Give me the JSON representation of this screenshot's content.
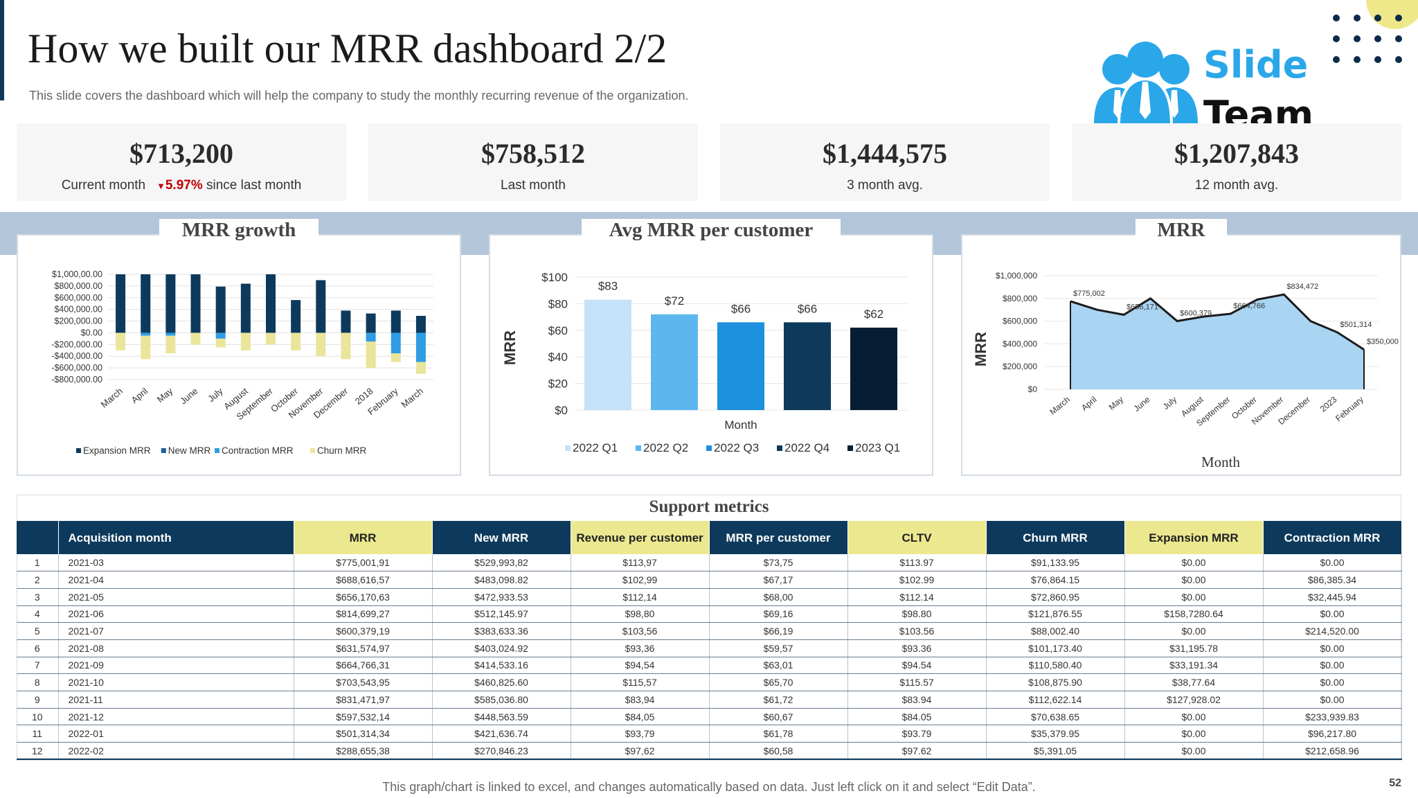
{
  "header": {
    "title": "How we built our MRR dashboard 2/2",
    "subtitle": "This slide covers the dashboard which will help the company to study the monthly recurring revenue of the organization."
  },
  "logo": {
    "line1": "Slide",
    "line2": "Team"
  },
  "kpis": [
    {
      "value": "$713,200",
      "label": "Current month",
      "delta": "5.97%",
      "delta_suffix": "since last month"
    },
    {
      "value": "$758,512",
      "label": "Last month"
    },
    {
      "value": "$1,444,575",
      "label": "3 month avg."
    },
    {
      "value": "$1,207,843",
      "label": "12 month avg."
    }
  ],
  "panels": {
    "growth_title": "MRR growth",
    "avg_title": "Avg MRR per customer",
    "mrr_title": "MRR"
  },
  "colors": {
    "navy": "#0d3a5c",
    "expansion": "#0d3a5c",
    "new": "#1f5f9a",
    "contraction": "#2f9de4",
    "churn": "#e9e59a",
    "mrr_fill": "#a9d4f2",
    "delta_red": "#c00000"
  },
  "chart_data": [
    {
      "type": "bar",
      "stacked": true,
      "title": "MRR growth",
      "categories": [
        "March",
        "April",
        "May",
        "June",
        "July",
        "August",
        "September",
        "October",
        "November",
        "December",
        "2018",
        "February",
        "March"
      ],
      "ylim": [
        -800000,
        1000000
      ],
      "ytick_values": [
        1000000,
        800000,
        600000,
        400000,
        200000,
        0,
        -200000,
        -400000,
        -600000,
        -800000
      ],
      "yticks": [
        "$1,000,00.00",
        "$800,000.00",
        "$600,000.00",
        "$400,000.00",
        "$200,000.00",
        "$0.00",
        "-$200,000.00",
        "-$400,000.00",
        "-$600,000.00",
        "-$800,000.00"
      ],
      "series": [
        {
          "name": "Expansion MRR",
          "color": "#0d3a5c",
          "values": [
            1000000,
            1000000,
            1000000,
            1000000,
            790000,
            840000,
            1000000,
            560000,
            900000,
            380000,
            330000,
            380000,
            290000
          ]
        },
        {
          "name": "New MRR",
          "color": "#1f5f9a",
          "values": [
            0,
            0,
            0,
            0,
            0,
            0,
            0,
            0,
            0,
            0,
            0,
            0,
            0
          ]
        },
        {
          "name": "Contraction MRR",
          "color": "#2f9de4",
          "values": [
            0,
            -50000,
            -50000,
            0,
            -100000,
            0,
            0,
            0,
            0,
            0,
            -150000,
            -350000,
            -500000
          ]
        },
        {
          "name": "Churn MRR",
          "color": "#e9e59a",
          "values": [
            -300000,
            -400000,
            -300000,
            -200000,
            -150000,
            -300000,
            -200000,
            -300000,
            -400000,
            -450000,
            -450000,
            -150000,
            -200000
          ]
        }
      ]
    },
    {
      "type": "bar",
      "title": "Avg MRR per customer",
      "xlabel": "Month",
      "ylabel": "MRR",
      "categories": [
        "2022 Q1",
        "2022 Q2",
        "2022 Q3",
        "2022 Q4",
        "2023 Q1"
      ],
      "values": [
        83,
        72,
        66,
        66,
        62
      ],
      "labels": [
        "$83",
        "$72",
        "$66",
        "$66",
        "$62"
      ],
      "colors": [
        "#c5e2f8",
        "#5db7ee",
        "#1d90e0",
        "#0d3a5c",
        "#061e33"
      ],
      "ylim": [
        0,
        100
      ],
      "ytick_values": [
        100,
        80,
        60,
        40,
        20,
        0
      ],
      "yticks": [
        "$100",
        "$80",
        "$60",
        "$40",
        "$20",
        "$0"
      ]
    },
    {
      "type": "area",
      "title": "MRR",
      "xlabel": "Month",
      "ylabel": "MRR",
      "categories": [
        "March",
        "April",
        "May",
        "June",
        "July",
        "August",
        "September",
        "October",
        "November",
        "December",
        "2023",
        "February"
      ],
      "values": [
        775002,
        700000,
        656171,
        800000,
        600379,
        640000,
        664766,
        790000,
        834472,
        600000,
        501314,
        350000
      ],
      "labels": [
        "$775,002",
        "",
        "$656,171",
        "",
        "$600,379",
        "",
        "$664,766",
        "",
        "$834,472",
        "",
        "$501,314",
        "$350,000"
      ],
      "ylim": [
        0,
        1000000
      ],
      "ytick_values": [
        1000000,
        800000,
        600000,
        400000,
        200000,
        0
      ],
      "yticks": [
        "$1,000,000",
        "$800,000",
        "$600,000",
        "$400,000",
        "$200,000",
        "$0"
      ]
    }
  ],
  "support_metrics": {
    "title": "Support metrics",
    "columns": [
      "",
      "Acquisition month",
      "MRR",
      "New MRR",
      "Revenue per customer",
      "MRR per customer",
      "CLTV",
      "Churn MRR",
      "Expansion MRR",
      "Contraction MRR"
    ],
    "rows": [
      [
        "1",
        "2021-03",
        "$775,001,91",
        "$529,993,82",
        "$113,97",
        "$73,75",
        "$113.97",
        "$91,133.95",
        "$0.00",
        "$0.00"
      ],
      [
        "2",
        "2021-04",
        "$688,616,57",
        "$483,098.82",
        "$102,99",
        "$67,17",
        "$102.99",
        "$76,864.15",
        "$0.00",
        "$86,385.34"
      ],
      [
        "3",
        "2021-05",
        "$656,170,63",
        "$472,933.53",
        "$112,14",
        "$68,00",
        "$112.14",
        "$72,860.95",
        "$0.00",
        "$32,445.94"
      ],
      [
        "4",
        "2021-06",
        "$814,699,27",
        "$512,145.97",
        "$98,80",
        "$69,16",
        "$98.80",
        "$121,876.55",
        "$158,7280.64",
        "$0.00"
      ],
      [
        "5",
        "2021-07",
        "$600,379,19",
        "$383,633.36",
        "$103,56",
        "$66,19",
        "$103.56",
        "$88,002.40",
        "$0.00",
        "$214,520.00"
      ],
      [
        "6",
        "2021-08",
        "$631,574,97",
        "$403,024.92",
        "$93,36",
        "$59,57",
        "$93.36",
        "$101,173.40",
        "$31,195.78",
        "$0.00"
      ],
      [
        "7",
        "2021-09",
        "$664,766,31",
        "$414,533.16",
        "$94,54",
        "$63,01",
        "$94.54",
        "$110,580.40",
        "$33,191.34",
        "$0.00"
      ],
      [
        "8",
        "2021-10",
        "$703,543,95",
        "$460,825.60",
        "$115,57",
        "$65,70",
        "$115.57",
        "$108,875.90",
        "$38,77.64",
        "$0.00"
      ],
      [
        "9",
        "2021-11",
        "$831,471,97",
        "$585,036.80",
        "$83,94",
        "$61,72",
        "$83.94",
        "$112,622.14",
        "$127,928.02",
        "$0.00"
      ],
      [
        "10",
        "2021-12",
        "$597,532,14",
        "$448,563.59",
        "$84,05",
        "$60,67",
        "$84.05",
        "$70,638.65",
        "$0.00",
        "$233,939.83"
      ],
      [
        "11",
        "2022-01",
        "$501,314,34",
        "$421,636.74",
        "$93,79",
        "$61,78",
        "$93.79",
        "$35,379.95",
        "$0.00",
        "$96,217.80"
      ],
      [
        "12",
        "2022-02",
        "$288,655,38",
        "$270,846.23",
        "$97,62",
        "$60,58",
        "$97.62",
        "$5,391.05",
        "$0.00",
        "$212,658.96"
      ]
    ]
  },
  "footer": {
    "note": "This graph/chart is linked to excel, and changes automatically based on data. Just left click on it and select “Edit Data”.",
    "page_number": "52"
  }
}
